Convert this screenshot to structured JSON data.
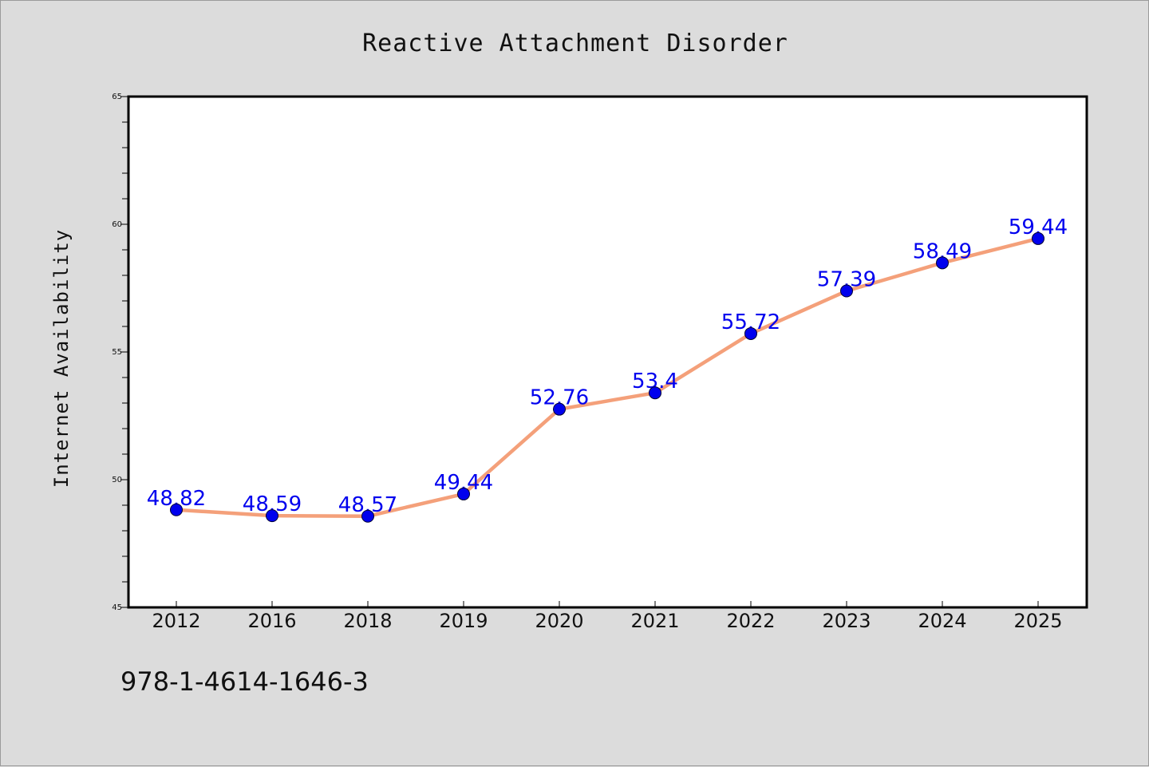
{
  "chart_data": {
    "type": "line",
    "title": "Reactive Attachment Disorder",
    "xlabel": "",
    "ylabel": "Internet Availability",
    "categories": [
      "2012",
      "2016",
      "2018",
      "2019",
      "2020",
      "2021",
      "2022",
      "2023",
      "2024",
      "2025"
    ],
    "series": [
      {
        "values": [
          48.82,
          48.59,
          48.57,
          49.44,
          52.76,
          53.4,
          55.72,
          57.39,
          58.49,
          59.44
        ],
        "line_color": "#f4a07a",
        "marker_color": "#0000ee"
      }
    ],
    "data_labels": [
      "48.82",
      "48.59",
      "48.57",
      "49.44",
      "52.76",
      "53.4",
      "55.72",
      "57.39",
      "58.49",
      "59.44"
    ],
    "ylim": [
      45,
      65
    ],
    "yticks": [
      "45",
      "50",
      "55",
      "60",
      "65"
    ],
    "grid": false,
    "legend": "none"
  },
  "footnote": "978-1-4614-1646-3"
}
